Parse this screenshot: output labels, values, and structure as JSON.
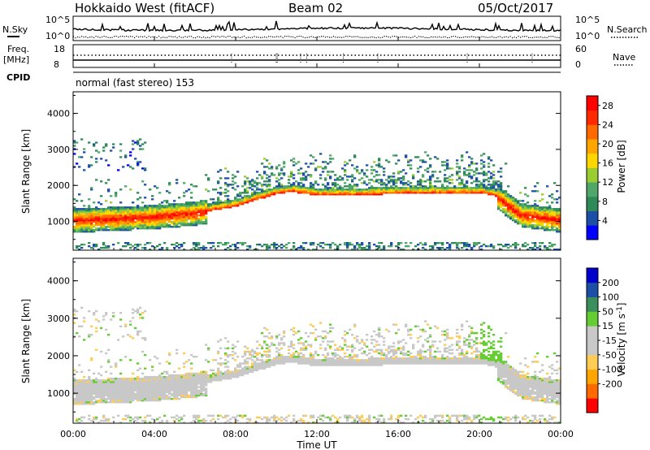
{
  "header": {
    "station": "Hokkaido West (fitACF)",
    "beam": "Beam 02",
    "date": "05/Oct/2017"
  },
  "strip": {
    "nsky_label": "N.Sky",
    "nsearch_label": "N.Search",
    "nsky_ticks": [
      "10^5",
      "10^0"
    ],
    "nsearch_ticks": [
      "10^5",
      "10^0"
    ],
    "freq_label": "Freq.",
    "freq_unit": "[MHz]",
    "freq_ticks": [
      "18",
      "8"
    ],
    "nave_label": "Nave",
    "nave_ticks": [
      "60",
      "0"
    ],
    "cpid_label": "CPID",
    "cpid_text": "normal (fast stereo) 153"
  },
  "colors": {
    "power_scale": [
      "#0000ff",
      "#1e4fa6",
      "#2e8b57",
      "#4fa86a",
      "#9acd32",
      "#ffd700",
      "#ffa500",
      "#ff6a00",
      "#ff2a00",
      "#ff0000"
    ],
    "velocity_scale": [
      "#ff0000",
      "#ff6a00",
      "#ffa500",
      "#ffcc55",
      "#c8c8c8",
      "#c8c8c8",
      "#66cc33",
      "#3a8f5a",
      "#1e4fa6",
      "#0000cc"
    ],
    "ground_scatter": "#c8c8c8"
  },
  "chart_data": [
    {
      "type": "heatmap",
      "title": "Power",
      "xlabel": "Time UT",
      "ylabel": "Slant Range [km]",
      "x_ticks": [
        "00:00",
        "04:00",
        "08:00",
        "12:00",
        "16:00",
        "20:00",
        "00:00"
      ],
      "xlim": [
        0,
        24
      ],
      "ylim": [
        200,
        4600
      ],
      "y_ticks": [
        1000,
        2000,
        3000,
        4000
      ],
      "colorbar": {
        "label": "Power [dB]",
        "ticks": [
          4,
          8,
          12,
          16,
          20,
          24,
          28
        ],
        "range": [
          0,
          30
        ]
      },
      "band_center_km": {
        "time_h": [
          0,
          2,
          4,
          6,
          8,
          10,
          10.7,
          12,
          14,
          16,
          18,
          20,
          20.7,
          22,
          24
        ],
        "range": [
          1000,
          1050,
          1100,
          1200,
          1400,
          1750,
          1800,
          1700,
          1700,
          1750,
          1750,
          1750,
          1700,
          1150,
          1000
        ]
      }
    },
    {
      "type": "heatmap",
      "title": "Velocity",
      "xlabel": "Time UT",
      "ylabel": "Slant Range [km]",
      "x_ticks": [
        "00:00",
        "04:00",
        "08:00",
        "12:00",
        "16:00",
        "20:00",
        "00:00"
      ],
      "xlim": [
        0,
        24
      ],
      "ylim": [
        200,
        4600
      ],
      "y_ticks": [
        1000,
        2000,
        3000,
        4000
      ],
      "colorbar": {
        "label": "Velocity [m s^-1]",
        "ticks": [
          200,
          100,
          50,
          15,
          -15,
          -50,
          -100,
          -200
        ],
        "range": [
          -250,
          250
        ]
      }
    }
  ]
}
